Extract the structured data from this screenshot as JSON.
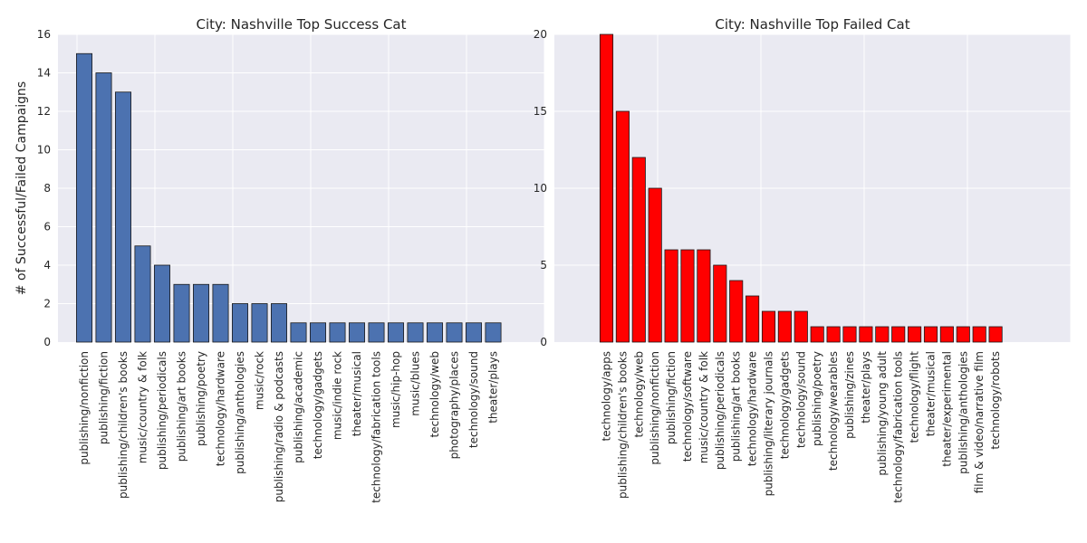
{
  "chart_data": [
    {
      "type": "bar",
      "title": "City: Nashville Top Success Cat",
      "xlabel": "",
      "ylabel": "# of Successful/Failed Campaigns",
      "ylim": [
        0,
        16
      ],
      "yticks": [
        0,
        2,
        4,
        6,
        8,
        10,
        12,
        14,
        16
      ],
      "grid": true,
      "color": "#4c72b0",
      "categories": [
        "publishing/nonfiction",
        "publishing/fiction",
        "publishing/children's books",
        "music/country & folk",
        "publishing/periodicals",
        "publishing/art books",
        "publishing/poetry",
        "technology/hardware",
        "publishing/anthologies",
        "music/rock",
        "publishing/radio & podcasts",
        "publishing/academic",
        "technology/gadgets",
        "music/indie rock",
        "theater/musical",
        "technology/fabrication tools",
        "music/hip-hop",
        "music/blues",
        "technology/web",
        "photography/places",
        "technology/sound",
        "theater/plays"
      ],
      "values": [
        15,
        14,
        13,
        5,
        4,
        3,
        3,
        3,
        2,
        2,
        2,
        1,
        1,
        1,
        1,
        1,
        1,
        1,
        1,
        1,
        1,
        1
      ]
    },
    {
      "type": "bar",
      "title": "City: Nashville Top Failed Cat",
      "xlabel": "",
      "ylabel": "",
      "ylim": [
        0,
        20
      ],
      "yticks": [
        0,
        5,
        10,
        15,
        20
      ],
      "grid": true,
      "color": "#ff0000",
      "categories": [
        "technology/apps",
        "publishing/children's books",
        "technology/web",
        "publishing/nonfiction",
        "publishing/fiction",
        "technology/software",
        "music/country & folk",
        "publishing/periodicals",
        "publishing/art books",
        "technology/hardware",
        "publishing/literary journals",
        "technology/gadgets",
        "technology/sound",
        "publishing/poetry",
        "technology/wearables",
        "publishing/zines",
        "theater/plays",
        "publishing/young adult",
        "technology/fabrication tools",
        "technology/flight",
        "theater/musical",
        "theater/experimental",
        "publishing/anthologies",
        "film & video/narrative film",
        "technology/robots"
      ],
      "values": [
        20,
        15,
        12,
        10,
        6,
        6,
        6,
        5,
        4,
        3,
        2,
        2,
        2,
        1,
        1,
        1,
        1,
        1,
        1,
        1,
        1,
        1,
        1,
        1,
        1
      ]
    }
  ]
}
